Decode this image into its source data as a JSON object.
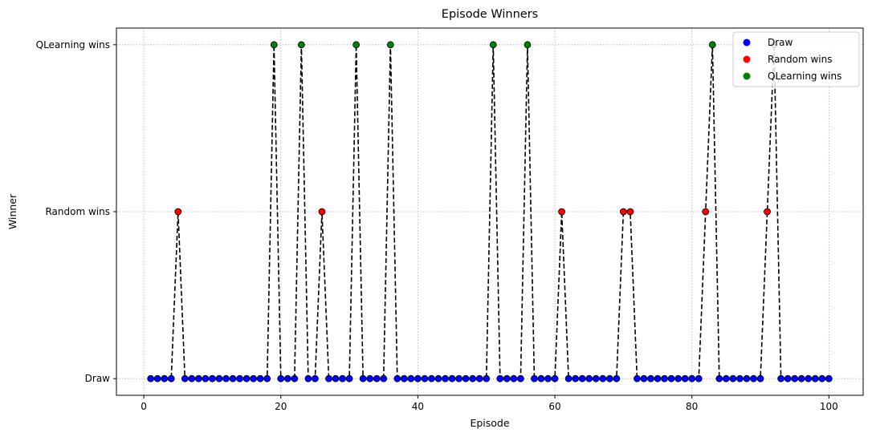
{
  "chart_data": {
    "type": "line",
    "title": "Episode Winners",
    "xlabel": "Episode",
    "ylabel": "Winner",
    "xlim": [
      -4,
      105
    ],
    "ylim": [
      -0.1,
      2.1
    ],
    "xticks": [
      0,
      20,
      40,
      60,
      80,
      100
    ],
    "yticks": [
      {
        "value": 0,
        "label": "Draw"
      },
      {
        "value": 1,
        "label": "Random wins"
      },
      {
        "value": 2,
        "label": "QLearning wins"
      }
    ],
    "grid": true,
    "legend_position": "top-right",
    "line_style": "dashed",
    "line_color": "#000000",
    "legend": [
      {
        "name": "Draw",
        "value": 0,
        "color": "#0000ff"
      },
      {
        "name": "Random wins",
        "value": 1,
        "color": "#ff0000"
      },
      {
        "name": "QLearning wins",
        "value": 2,
        "color": "#008000"
      }
    ],
    "x": [
      1,
      2,
      3,
      4,
      5,
      6,
      7,
      8,
      9,
      10,
      11,
      12,
      13,
      14,
      15,
      16,
      17,
      18,
      19,
      20,
      21,
      22,
      23,
      24,
      25,
      26,
      27,
      28,
      29,
      30,
      31,
      32,
      33,
      34,
      35,
      36,
      37,
      38,
      39,
      40,
      41,
      42,
      43,
      44,
      45,
      46,
      47,
      48,
      49,
      50,
      51,
      52,
      53,
      54,
      55,
      56,
      57,
      58,
      59,
      60,
      61,
      62,
      63,
      64,
      65,
      66,
      67,
      68,
      69,
      70,
      71,
      72,
      73,
      74,
      75,
      76,
      77,
      78,
      79,
      80,
      81,
      82,
      83,
      84,
      85,
      86,
      87,
      88,
      89,
      90,
      91,
      92,
      93,
      94,
      95,
      96,
      97,
      98,
      99,
      100
    ],
    "y": [
      0,
      0,
      0,
      0,
      1,
      0,
      0,
      0,
      0,
      0,
      0,
      0,
      0,
      0,
      0,
      0,
      0,
      0,
      2,
      0,
      0,
      0,
      2,
      0,
      0,
      1,
      0,
      0,
      0,
      0,
      2,
      0,
      0,
      0,
      0,
      2,
      0,
      0,
      0,
      0,
      0,
      0,
      0,
      0,
      0,
      0,
      0,
      0,
      0,
      0,
      2,
      0,
      0,
      0,
      0,
      2,
      0,
      0,
      0,
      0,
      1,
      0,
      0,
      0,
      0,
      0,
      0,
      0,
      0,
      1,
      1,
      0,
      0,
      0,
      0,
      0,
      0,
      0,
      0,
      0,
      0,
      1,
      2,
      0,
      0,
      0,
      0,
      0,
      0,
      0,
      1,
      2,
      0,
      0,
      0,
      0,
      0,
      0,
      0,
      0
    ]
  }
}
